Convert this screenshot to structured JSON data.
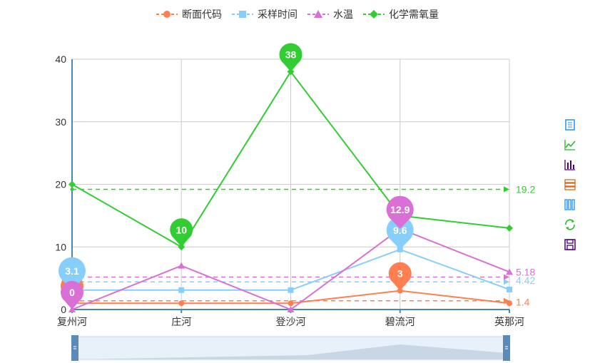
{
  "chart_data": {
    "type": "line",
    "categories": [
      "复州河",
      "庄河",
      "登沙河",
      "碧流河",
      "英那河"
    ],
    "series": [
      {
        "name": "断面代码",
        "color": "#ff7f50",
        "marker": "circle",
        "values": [
          1,
          1,
          1,
          3,
          1
        ],
        "markPoints": [
          {
            "label": "3",
            "index": 3,
            "value": 3
          },
          {
            "label": "",
            "index": 0,
            "value": 1
          }
        ],
        "markLine": {
          "value": 1.4,
          "label": "1.4"
        }
      },
      {
        "name": "采样时间",
        "color": "#87cefa",
        "marker": "square",
        "values": [
          3.1,
          3.1,
          3.1,
          9.6,
          3.2
        ],
        "markPoints": [
          {
            "label": "9.6",
            "index": 3,
            "value": 9.6
          },
          {
            "label": "3.1",
            "index": 0,
            "value": 3.1
          }
        ],
        "markLine": {
          "value": 4.42,
          "label": "4.42"
        }
      },
      {
        "name": "水温",
        "color": "#da70d6",
        "marker": "triangle",
        "values": [
          0,
          7,
          0,
          12.9,
          6
        ],
        "markPoints": [
          {
            "label": "12.9",
            "index": 3,
            "value": 12.9
          },
          {
            "label": "0",
            "index": 0,
            "value": 0
          }
        ],
        "markLine": {
          "value": 5.18,
          "label": "5.18"
        }
      },
      {
        "name": "化学需氧量",
        "color": "#32cd32",
        "marker": "diamond",
        "values": [
          20,
          10,
          38,
          15,
          13
        ],
        "markPoints": [
          {
            "label": "38",
            "index": 2,
            "value": 38
          },
          {
            "label": "10",
            "index": 1,
            "value": 10
          }
        ],
        "markLine": {
          "value": 19.2,
          "label": "19.2"
        }
      }
    ],
    "yticks": [
      0,
      10,
      20,
      30,
      40
    ],
    "ylim": [
      0,
      40
    ],
    "grid": true,
    "legend_position": "top-center"
  },
  "toolbox": {
    "items": [
      {
        "name": "data-view-icon",
        "color": "#1e90ff"
      },
      {
        "name": "line-chart-icon",
        "color": "#22bb22"
      },
      {
        "name": "bar-chart-icon",
        "color": "#4b0082"
      },
      {
        "name": "stack-icon",
        "color": "#d2691e"
      },
      {
        "name": "tiled-icon",
        "color": "#1e90ff"
      },
      {
        "name": "restore-icon",
        "color": "#22bb22"
      },
      {
        "name": "save-image-icon",
        "color": "#4b0082"
      }
    ]
  }
}
